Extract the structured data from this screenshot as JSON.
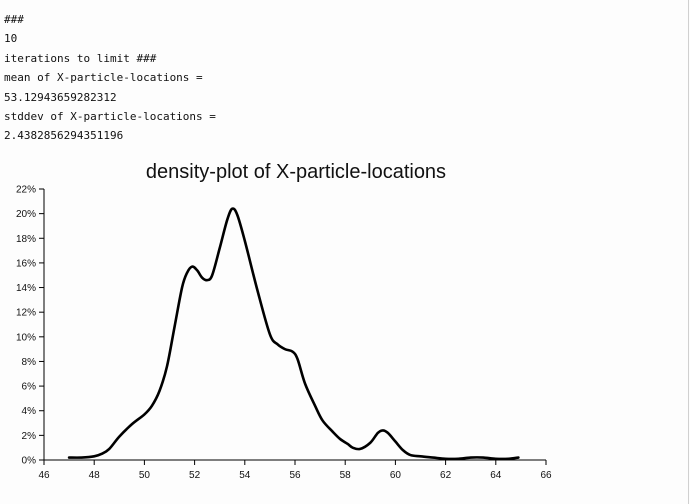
{
  "console": {
    "lines": [
      "###",
      "10",
      "iterations to limit ###",
      "mean of X-particle-locations =",
      "53.12943659282312",
      "stddev of X-particle-locations =",
      "2.4382856294351196"
    ]
  },
  "chart_data": {
    "type": "line",
    "title": "density-plot of X-particle-locations",
    "xlabel": "",
    "ylabel": "",
    "xlim": [
      46,
      66
    ],
    "ylim": [
      0,
      22
    ],
    "x_ticks": [
      "46",
      "48",
      "50",
      "52",
      "54",
      "56",
      "58",
      "60",
      "62",
      "64",
      "66"
    ],
    "y_ticks": [
      "0%",
      "2%",
      "4%",
      "6%",
      "8%",
      "10%",
      "12%",
      "14%",
      "16%",
      "18%",
      "20%",
      "22%"
    ],
    "grid": false,
    "series": [
      {
        "color": "#000000",
        "points": [
          [
            47.0,
            0.2
          ],
          [
            47.5,
            0.2
          ],
          [
            48.0,
            0.3
          ],
          [
            48.3,
            0.5
          ],
          [
            48.6,
            0.9
          ],
          [
            49.0,
            1.9
          ],
          [
            49.5,
            2.9
          ],
          [
            50.0,
            3.7
          ],
          [
            50.3,
            4.4
          ],
          [
            50.6,
            5.6
          ],
          [
            50.9,
            7.6
          ],
          [
            51.2,
            10.8
          ],
          [
            51.5,
            14.0
          ],
          [
            51.7,
            15.2
          ],
          [
            51.9,
            15.7
          ],
          [
            52.1,
            15.4
          ],
          [
            52.3,
            14.8
          ],
          [
            52.5,
            14.6
          ],
          [
            52.7,
            15.0
          ],
          [
            53.0,
            17.2
          ],
          [
            53.3,
            19.5
          ],
          [
            53.5,
            20.4
          ],
          [
            53.7,
            19.9
          ],
          [
            54.0,
            17.8
          ],
          [
            54.5,
            13.8
          ],
          [
            55.0,
            10.2
          ],
          [
            55.3,
            9.4
          ],
          [
            55.6,
            9.0
          ],
          [
            55.9,
            8.8
          ],
          [
            56.1,
            8.2
          ],
          [
            56.4,
            6.2
          ],
          [
            56.8,
            4.4
          ],
          [
            57.1,
            3.2
          ],
          [
            57.5,
            2.3
          ],
          [
            57.8,
            1.7
          ],
          [
            58.1,
            1.3
          ],
          [
            58.3,
            1.0
          ],
          [
            58.6,
            0.9
          ],
          [
            59.0,
            1.4
          ],
          [
            59.3,
            2.2
          ],
          [
            59.5,
            2.4
          ],
          [
            59.7,
            2.2
          ],
          [
            60.0,
            1.5
          ],
          [
            60.3,
            0.8
          ],
          [
            60.6,
            0.4
          ],
          [
            61.0,
            0.3
          ],
          [
            61.5,
            0.2
          ],
          [
            62.0,
            0.1
          ],
          [
            62.5,
            0.1
          ],
          [
            63.0,
            0.2
          ],
          [
            63.5,
            0.2
          ],
          [
            64.0,
            0.1
          ],
          [
            64.5,
            0.1
          ],
          [
            64.9,
            0.2
          ]
        ]
      }
    ]
  }
}
